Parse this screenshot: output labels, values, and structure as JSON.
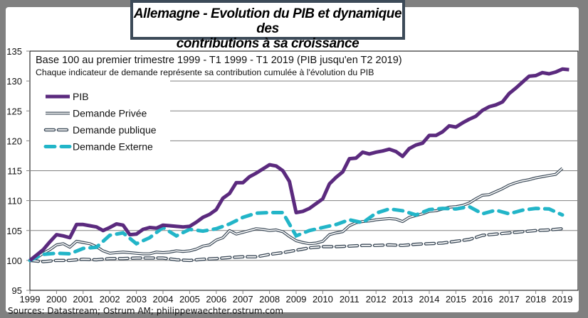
{
  "title_line1": "Allemagne - Evolution du PIB  et dynamique des",
  "title_line2": "contributions à sa croissance",
  "sources": "Sources: Datastream; Ostrum AM; philippewaechter.ostrum.com",
  "chart_data": {
    "type": "line",
    "title": "Allemagne - Evolution du PIB et dynamique des contributions à sa croissance",
    "subtitle1": "Base 100 au premier trimestre  1999 - T1  1999 - T1  2019 (PIB jusqu'en  T2 2019)",
    "subtitle2": "Chaque indicateur de demande représente sa contribution cumulée à l'évolution du PIB",
    "xlabel": "",
    "ylabel": "",
    "ylim": [
      95,
      135
    ],
    "yticks": [
      95,
      100,
      105,
      110,
      115,
      120,
      125,
      130,
      135
    ],
    "xticks": [
      "1999",
      "2000",
      "2001",
      "2002",
      "2003",
      "2004",
      "2005",
      "2006",
      "2007",
      "2008",
      "2009",
      "2010",
      "2011",
      "2012",
      "2013",
      "2014",
      "2015",
      "2016",
      "2017",
      "2018",
      "2019"
    ],
    "xlim": [
      1999,
      2019.6
    ],
    "grid": "horizontal",
    "legend_position": "top-left",
    "series": [
      {
        "name": "PIB",
        "color": "#5b2a7e",
        "style": "solid-thick",
        "x": [
          1999.0,
          1999.25,
          1999.5,
          1999.75,
          2000.0,
          2000.25,
          2000.5,
          2000.75,
          2001.0,
          2001.25,
          2001.5,
          2001.75,
          2002.0,
          2002.25,
          2002.5,
          2002.75,
          2003.0,
          2003.25,
          2003.5,
          2003.75,
          2004.0,
          2004.25,
          2004.5,
          2004.75,
          2005.0,
          2005.25,
          2005.5,
          2005.75,
          2006.0,
          2006.25,
          2006.5,
          2006.75,
          2007.0,
          2007.25,
          2007.5,
          2007.75,
          2008.0,
          2008.25,
          2008.5,
          2008.75,
          2009.0,
          2009.25,
          2009.5,
          2009.75,
          2010.0,
          2010.25,
          2010.5,
          2010.75,
          2011.0,
          2011.25,
          2011.5,
          2011.75,
          2012.0,
          2012.25,
          2012.5,
          2012.75,
          2013.0,
          2013.25,
          2013.5,
          2013.75,
          2014.0,
          2014.25,
          2014.5,
          2014.75,
          2015.0,
          2015.25,
          2015.5,
          2015.75,
          2016.0,
          2016.25,
          2016.5,
          2016.75,
          2017.0,
          2017.25,
          2017.5,
          2017.75,
          2018.0,
          2018.25,
          2018.5,
          2018.75,
          2019.0,
          2019.25
        ],
        "values": [
          100.0,
          100.9,
          101.8,
          103.1,
          104.3,
          104.1,
          103.8,
          106.0,
          106.0,
          105.8,
          105.6,
          105.0,
          105.5,
          106.1,
          105.9,
          104.3,
          104.4,
          105.2,
          105.5,
          105.4,
          105.9,
          105.8,
          105.7,
          105.6,
          105.7,
          106.4,
          107.2,
          107.7,
          108.5,
          110.4,
          111.2,
          113.0,
          113.0,
          114.0,
          114.6,
          115.3,
          116.0,
          115.8,
          115.0,
          113.2,
          108.0,
          108.2,
          108.7,
          109.5,
          110.3,
          112.8,
          113.9,
          114.8,
          117.0,
          117.1,
          118.1,
          117.8,
          118.1,
          118.3,
          118.6,
          118.2,
          117.4,
          118.7,
          119.3,
          119.6,
          120.9,
          120.9,
          121.5,
          122.5,
          122.3,
          123.0,
          123.6,
          124.1,
          125.1,
          125.7,
          126.0,
          126.5,
          127.9,
          128.8,
          129.8,
          130.8,
          130.9,
          131.4,
          131.2,
          131.5,
          132.0,
          131.9
        ]
      },
      {
        "name": "Demande Privée",
        "color": "#3c4a58",
        "style": "double-line",
        "x": [
          1999.0,
          1999.25,
          1999.5,
          1999.75,
          2000.0,
          2000.25,
          2000.5,
          2000.75,
          2001.0,
          2001.25,
          2001.5,
          2001.75,
          2002.0,
          2002.25,
          2002.5,
          2002.75,
          2003.0,
          2003.25,
          2003.5,
          2003.75,
          2004.0,
          2004.25,
          2004.5,
          2004.75,
          2005.0,
          2005.25,
          2005.5,
          2005.75,
          2006.0,
          2006.25,
          2006.5,
          2006.75,
          2007.0,
          2007.25,
          2007.5,
          2007.75,
          2008.0,
          2008.25,
          2008.5,
          2008.75,
          2009.0,
          2009.25,
          2009.5,
          2009.75,
          2010.0,
          2010.25,
          2010.5,
          2010.75,
          2011.0,
          2011.25,
          2011.5,
          2011.75,
          2012.0,
          2012.25,
          2012.5,
          2012.75,
          2013.0,
          2013.25,
          2013.5,
          2013.75,
          2014.0,
          2014.25,
          2014.5,
          2014.75,
          2015.0,
          2015.25,
          2015.5,
          2015.75,
          2016.0,
          2016.25,
          2016.5,
          2016.75,
          2017.0,
          2017.25,
          2017.5,
          2017.75,
          2018.0,
          2018.25,
          2018.5,
          2018.75,
          2019.0
        ],
        "values": [
          100.0,
          100.4,
          101.2,
          101.8,
          102.6,
          102.8,
          102.2,
          103.2,
          103.0,
          102.8,
          102.3,
          101.6,
          101.2,
          101.3,
          101.4,
          101.3,
          101.2,
          101.1,
          101.1,
          101.4,
          101.3,
          101.4,
          101.6,
          101.5,
          101.6,
          101.9,
          102.4,
          102.6,
          103.4,
          103.8,
          105.0,
          104.4,
          104.7,
          105.0,
          105.3,
          105.2,
          105.0,
          105.1,
          104.8,
          104.0,
          103.3,
          103.0,
          102.8,
          102.9,
          103.2,
          104.3,
          104.6,
          104.8,
          105.8,
          106.3,
          106.5,
          106.6,
          106.8,
          106.9,
          107.0,
          106.9,
          106.5,
          107.2,
          107.5,
          107.8,
          108.2,
          108.3,
          108.6,
          108.9,
          109.0,
          109.2,
          109.6,
          110.3,
          110.9,
          111.0,
          111.5,
          112.0,
          112.6,
          113.0,
          113.3,
          113.5,
          113.8,
          114.0,
          114.2,
          114.4,
          115.4
        ]
      },
      {
        "name": "Demande publique",
        "color": "#3c4a58",
        "style": "dashed-outline",
        "x": [
          1999.0,
          1999.5,
          2000.0,
          2000.5,
          2001.0,
          2001.5,
          2002.0,
          2002.5,
          2003.0,
          2003.5,
          2004.0,
          2004.5,
          2005.0,
          2005.5,
          2006.0,
          2006.5,
          2007.0,
          2007.5,
          2008.0,
          2008.5,
          2009.0,
          2009.5,
          2010.0,
          2010.5,
          2011.0,
          2011.5,
          2012.0,
          2012.5,
          2013.0,
          2013.5,
          2014.0,
          2014.5,
          2015.0,
          2015.5,
          2016.0,
          2016.5,
          2017.0,
          2017.5,
          2018.0,
          2018.5,
          2019.0
        ],
        "values": [
          100.0,
          99.8,
          100.0,
          100.0,
          100.2,
          100.1,
          100.3,
          100.3,
          100.4,
          100.4,
          100.4,
          100.1,
          100.0,
          100.2,
          100.3,
          100.5,
          100.6,
          100.6,
          101.0,
          101.3,
          101.7,
          102.1,
          102.3,
          102.3,
          102.4,
          102.5,
          102.5,
          102.6,
          102.5,
          102.7,
          102.8,
          102.9,
          103.2,
          103.5,
          104.2,
          104.4,
          104.6,
          104.8,
          105.0,
          105.1,
          105.3
        ]
      },
      {
        "name": "Demande Externe",
        "color": "#22b5c8",
        "style": "dashed-thick",
        "x": [
          1999.0,
          1999.5,
          2000.0,
          2000.5,
          2001.0,
          2001.5,
          2002.0,
          2002.5,
          2003.0,
          2003.5,
          2004.0,
          2004.5,
          2005.0,
          2005.5,
          2006.0,
          2006.5,
          2007.0,
          2007.5,
          2008.0,
          2008.5,
          2009.0,
          2009.5,
          2010.0,
          2010.5,
          2011.0,
          2011.5,
          2012.0,
          2012.5,
          2013.0,
          2013.5,
          2014.0,
          2014.5,
          2015.0,
          2015.5,
          2016.0,
          2016.5,
          2017.0,
          2017.5,
          2018.0,
          2018.5,
          2019.0
        ],
        "values": [
          100.0,
          101.0,
          101.2,
          101.1,
          102.0,
          102.2,
          104.2,
          104.6,
          102.8,
          103.8,
          105.5,
          104.1,
          105.2,
          104.9,
          105.3,
          106.1,
          107.2,
          107.9,
          108.0,
          108.0,
          104.1,
          105.0,
          105.5,
          106.0,
          106.8,
          106.3,
          107.9,
          108.6,
          108.3,
          107.6,
          108.5,
          108.7,
          108.6,
          109.0,
          107.8,
          108.4,
          107.8,
          108.4,
          108.7,
          108.6,
          107.6
        ]
      }
    ]
  }
}
